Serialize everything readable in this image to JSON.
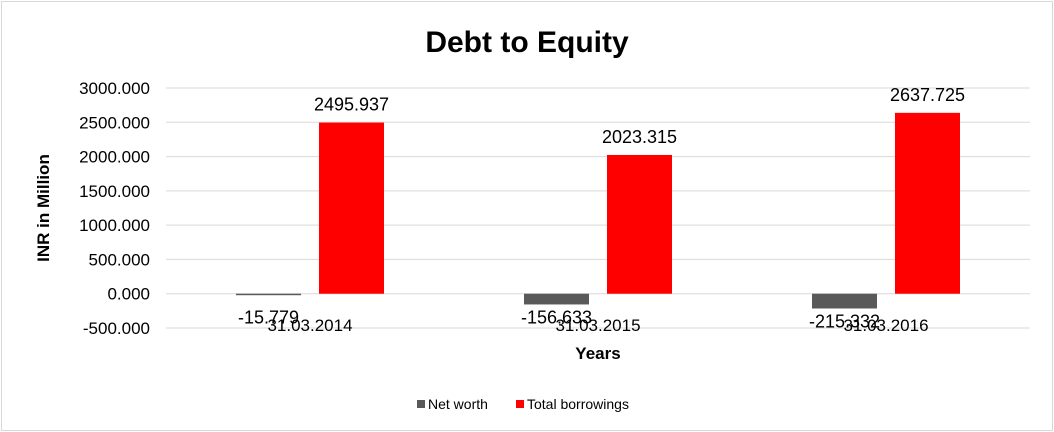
{
  "chart_data": {
    "type": "bar",
    "title": "Debt to Equity",
    "xlabel": "Years",
    "ylabel": "INR in Million",
    "categories": [
      "31.03.2014",
      "31.03.2015",
      "31.03.2016"
    ],
    "series": [
      {
        "name": "Net worth",
        "color": "#595959",
        "values": [
          -15.779,
          -156.633,
          -215.332
        ],
        "labels": [
          "-15.779",
          "-156.633",
          "-215.332"
        ]
      },
      {
        "name": "Total borrowings",
        "color": "#ff0000",
        "values": [
          2495.937,
          2023.315,
          2637.725
        ],
        "labels": [
          "2495.937",
          "2023.315",
          "2637.725"
        ]
      }
    ],
    "ylim": [
      -500,
      3000
    ],
    "yticks": [
      3000,
      2500,
      2000,
      1500,
      1000,
      500,
      0,
      -500
    ],
    "ytick_labels": [
      "3000.000",
      "2500.000",
      "2000.000",
      "1500.000",
      "1000.000",
      "500.000",
      "0.000",
      "-500.000"
    ],
    "grid": true,
    "legend": "bottom"
  }
}
